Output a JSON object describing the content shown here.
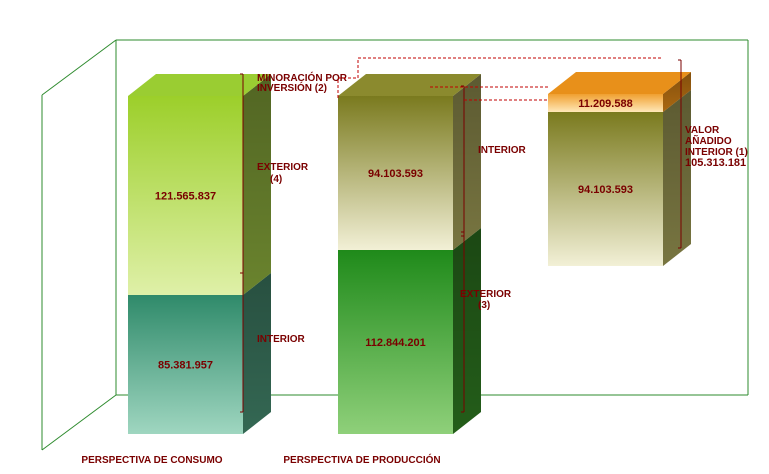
{
  "chart_data": {
    "type": "bar",
    "stacked": true,
    "categories": [
      "PERSPECTIVA DE CONSUMO",
      "PERSPECTIVA DE PRODUCCIÓN",
      ""
    ],
    "columns": [
      {
        "category": "PERSPECTIVA DE CONSUMO",
        "segments": [
          {
            "value_label": "85.381.957",
            "value": 85381957,
            "color_front": "#5aa88a",
            "color_side": "#3d7a62",
            "color_top": "#4b9477"
          },
          {
            "value_label": "121.565.837",
            "value": 121565837,
            "color_front": "#a8d84a",
            "color_side": "#7d9b36",
            "color_top": "#9acd32"
          }
        ],
        "brackets": [
          {
            "label": "INTERIOR",
            "segment": 0
          },
          {
            "label_lines": [
              "EXTERIOR",
              "(4)"
            ],
            "segment": 1
          }
        ]
      },
      {
        "category": "PERSPECTIVA DE PRODUCCIÓN",
        "segments": [
          {
            "value_label": "112.844.201",
            "value": 112844201,
            "color_front": "#3a9a2a",
            "color_side": "#2a6e1e",
            "color_top": "#4aa83a"
          },
          {
            "value_label": "94.103.593",
            "value": 94103593,
            "color_front": "#c7c48f",
            "color_side": "#8d8a4c",
            "color_top": "#8b8a2e"
          }
        ],
        "brackets": [
          {
            "label_lines": [
              "EXTERIOR",
              "(3)"
            ],
            "segment": 0
          },
          {
            "label": "INTERIOR",
            "segment": 1
          }
        ],
        "top_label_lines": [
          "MINORACIÓN POR",
          "INVERSIÓN (2)"
        ]
      },
      {
        "category": "",
        "segments": [
          {
            "value_label": "94.103.593",
            "value": 94103593,
            "color_front": "#c7c48f",
            "color_side": "#8d8a4c",
            "color_top": "#8b8a2e"
          },
          {
            "value_label": "11.209.588",
            "value": 11209588,
            "color_front": "#f5c070",
            "color_side": "#c87a14",
            "color_top": "#e8901a"
          }
        ],
        "bracket_label_lines": [
          "VALOR",
          "AÑADIDO",
          "INTERIOR (1)",
          "105.313.181"
        ]
      }
    ]
  }
}
